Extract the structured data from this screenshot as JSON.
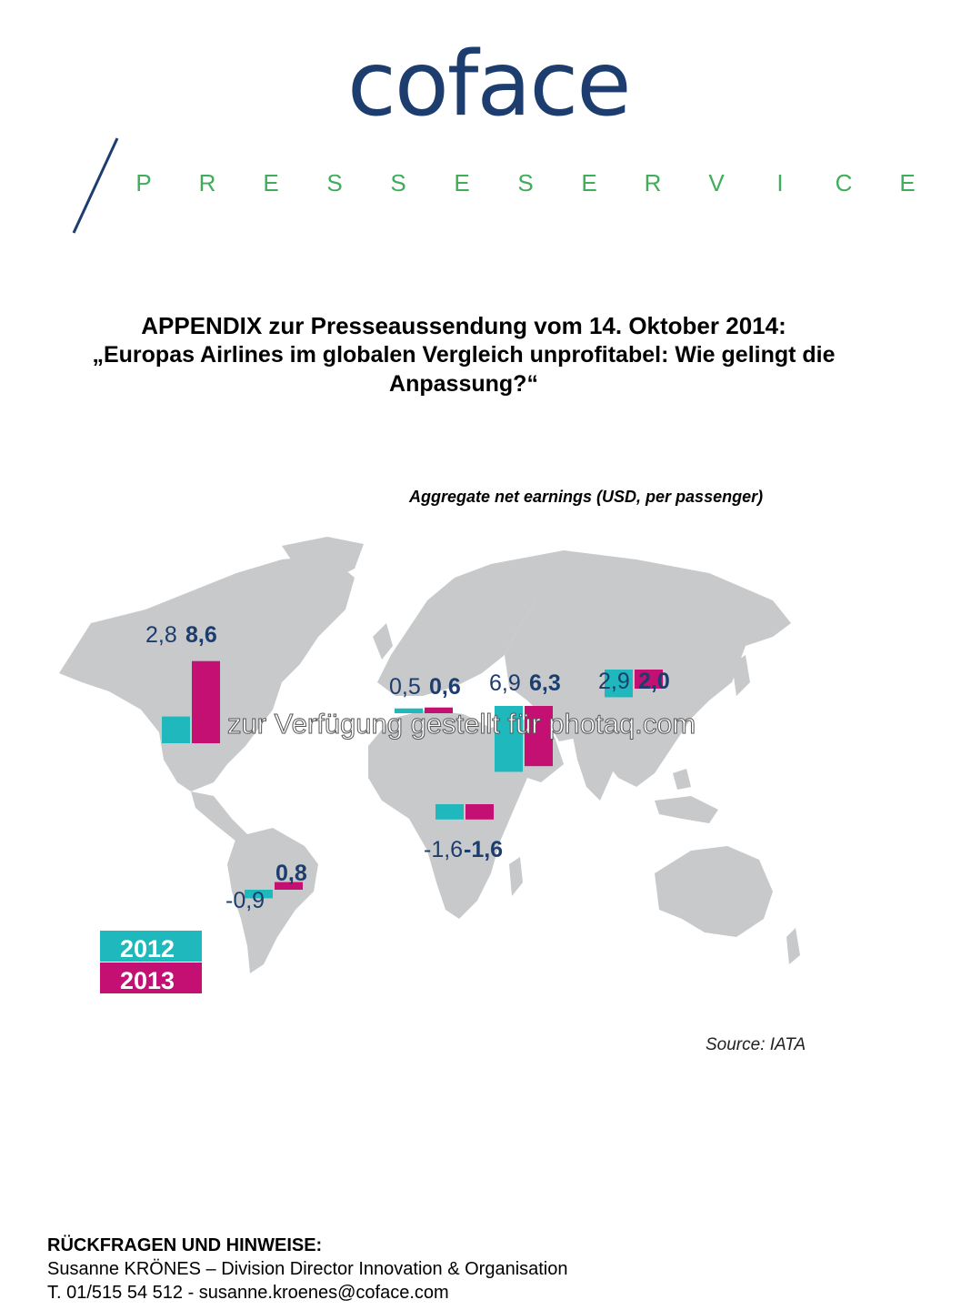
{
  "header": {
    "logo_text": "coface",
    "subtitle_letters": [
      "P",
      "R",
      "E",
      "S",
      "S",
      "E",
      "S",
      "E",
      "R",
      "V",
      "I",
      "C",
      "E"
    ]
  },
  "title": {
    "line1": "APPENDIX zur Presseaussendung vom 14. Oktober 2014:",
    "line2": "„Europas Airlines im globalen Vergleich unprofitabel:  Wie gelingt die",
    "line3": "Anpassung?“"
  },
  "chart_data": {
    "type": "bar",
    "title": "Aggregate net earnings (USD, per passenger)",
    "categories": [
      "North America",
      "Latin America",
      "Europe",
      "Africa",
      "Middle East",
      "Asia Pacific"
    ],
    "series": [
      {
        "name": "2012",
        "values": [
          2.8,
          -0.9,
          0.5,
          -1.6,
          6.9,
          2.9
        ]
      },
      {
        "name": "2013",
        "values": [
          8.6,
          0.8,
          0.6,
          -1.6,
          6.3,
          2.0
        ]
      }
    ],
    "labels_2012": [
      "2,8",
      "-0,9",
      "0,5",
      "-1,6",
      "6,9",
      "2,9"
    ],
    "labels_2013": [
      "8,6",
      "0,8",
      "0,6",
      "-1,6",
      "6,3",
      "2,0"
    ],
    "colors": {
      "2012": "#1fb8bd",
      "2013": "#c40f73",
      "map": "#c8c9cb",
      "labels": "#1c3d6e"
    },
    "legend": [
      "2012",
      "2013"
    ],
    "legend_position": "bottom-left",
    "source": "Source: IATA"
  },
  "watermark": "zur Verfügung gestellt für photaq.com",
  "contact": {
    "heading": "RÜCKFRAGEN UND HINWEISE:",
    "person": "Susanne KRÖNES – Division Director Innovation & Organisation",
    "phone_email": "T. 01/515 54 512 - susanne.kroenes@coface.com"
  }
}
